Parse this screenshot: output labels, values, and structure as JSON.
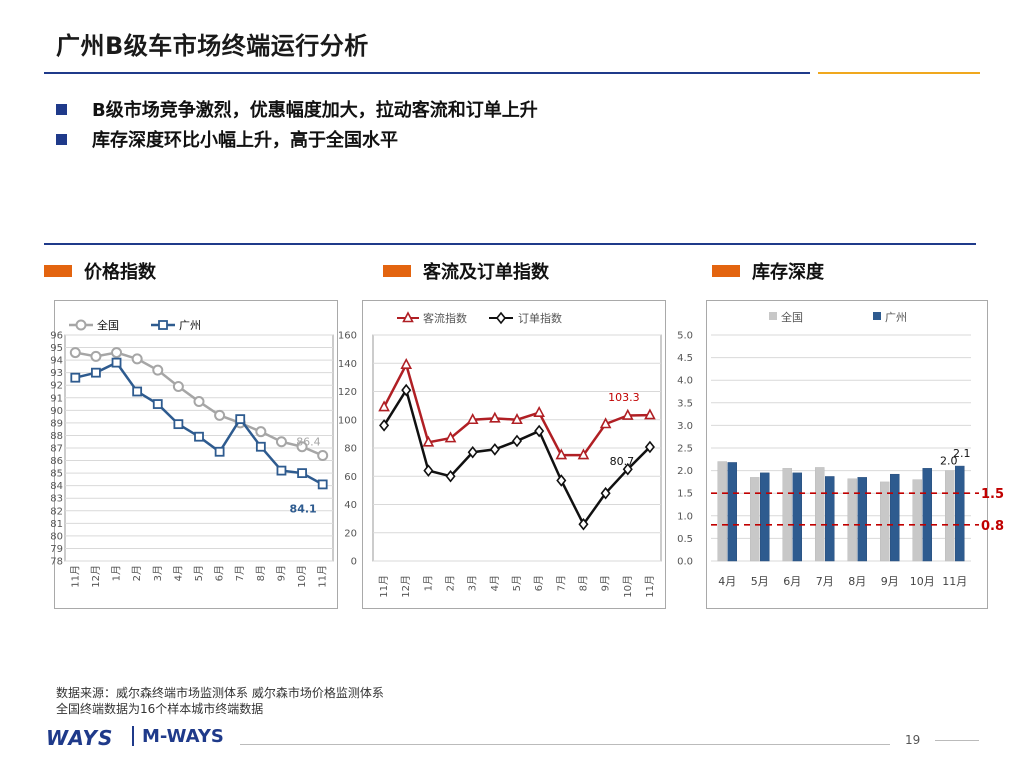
{
  "title": "广州B级车市场终端运行分析",
  "bullets": [
    "B级市场竞争激烈，优惠幅度加大，拉动客流和订单上升",
    "库存深度环比小幅上升，高于全国水平"
  ],
  "sections": [
    "价格指数",
    "客流及订单指数",
    "库存深度"
  ],
  "colors": {
    "brand_blue": "#1f3a8a",
    "accent_orange": "#e3640f",
    "gold": "#f0a81e"
  },
  "chart_data": [
    {
      "type": "line",
      "title": "价格指数",
      "categories": [
        "11月",
        "12月",
        "1月",
        "2月",
        "3月",
        "4月",
        "5月",
        "6月",
        "7月",
        "8月",
        "9月",
        "10月",
        "11月"
      ],
      "series": [
        {
          "name": "全国",
          "values": [
            94.6,
            94.3,
            94.6,
            94.1,
            93.2,
            91.9,
            90.7,
            89.6,
            89.0,
            88.3,
            87.5,
            87.1,
            86.4
          ],
          "color": "#a6a6a6"
        },
        {
          "name": "广州",
          "values": [
            92.6,
            93.0,
            93.8,
            91.5,
            90.5,
            88.9,
            87.9,
            86.7,
            89.3,
            87.1,
            85.2,
            85.0,
            84.1
          ],
          "color": "#2e5b8f"
        }
      ],
      "ylim": [
        78,
        96
      ],
      "yticks": [
        "96",
        "95",
        "94",
        "93",
        "92",
        "91",
        "90",
        "89",
        "88",
        "87",
        "86",
        "85",
        "84",
        "83",
        "82",
        "81",
        "80",
        "79",
        "78"
      ],
      "data_labels": {
        "全国": "86.4",
        "广州": "84.1"
      },
      "legend": "top-left",
      "grid": true
    },
    {
      "type": "line",
      "title": "客流及订单指数",
      "categories": [
        "11月",
        "12月",
        "1月",
        "2月",
        "3月",
        "4月",
        "5月",
        "6月",
        "7月",
        "8月",
        "9月",
        "10月",
        "11月"
      ],
      "series": [
        {
          "name": "客流指数",
          "values": [
            109,
            139,
            84,
            87,
            100,
            101,
            100,
            105,
            75,
            75,
            97,
            103,
            103.3
          ],
          "color": "#b01f24"
        },
        {
          "name": "订单指数",
          "values": [
            96,
            121,
            64,
            60,
            77,
            79,
            85,
            92,
            57,
            26,
            48,
            65,
            80.7
          ],
          "color": "#111111"
        }
      ],
      "ylim": [
        0,
        160
      ],
      "yticks": [
        "160",
        "140",
        "120",
        "100",
        "80",
        "60",
        "40",
        "20",
        "0"
      ],
      "data_labels": {
        "客流指数": "103.3",
        "订单指数": "80.7"
      },
      "legend": "top",
      "grid": true
    },
    {
      "type": "bar",
      "title": "库存深度",
      "categories": [
        "4月",
        "5月",
        "6月",
        "7月",
        "8月",
        "9月",
        "10月",
        "11月"
      ],
      "series": [
        {
          "name": "全国",
          "values": [
            2.2,
            1.85,
            2.05,
            2.07,
            1.82,
            1.75,
            1.8,
            2.0
          ],
          "color": "#c8c8c8"
        },
        {
          "name": "广州",
          "values": [
            2.18,
            1.95,
            1.95,
            1.87,
            1.85,
            1.92,
            2.05,
            2.1
          ],
          "color": "#2e5b8f"
        }
      ],
      "ylim": [
        0,
        5
      ],
      "yticks": [
        "5.0",
        "4.5",
        "4.0",
        "3.5",
        "3.0",
        "2.5",
        "2.0",
        "1.5",
        "1.0",
        "0.5",
        "0.0"
      ],
      "data_labels": {
        "全国": "2.0",
        "广州": "2.1"
      },
      "reference_lines": [
        {
          "value": 1.5,
          "label": "1.5"
        },
        {
          "value": 0.8,
          "label": "0.8"
        }
      ],
      "legend": "top",
      "grid": true
    }
  ],
  "footer": {
    "source_line1": "数据来源：威尔森终端市场监测体系   威尔森市场价格监测体系",
    "source_line2": "全国终端数据为16个样本城市终端数据",
    "logo_ways": "WAYS",
    "logo_mways": "M-WAYS",
    "page_number": "19"
  }
}
